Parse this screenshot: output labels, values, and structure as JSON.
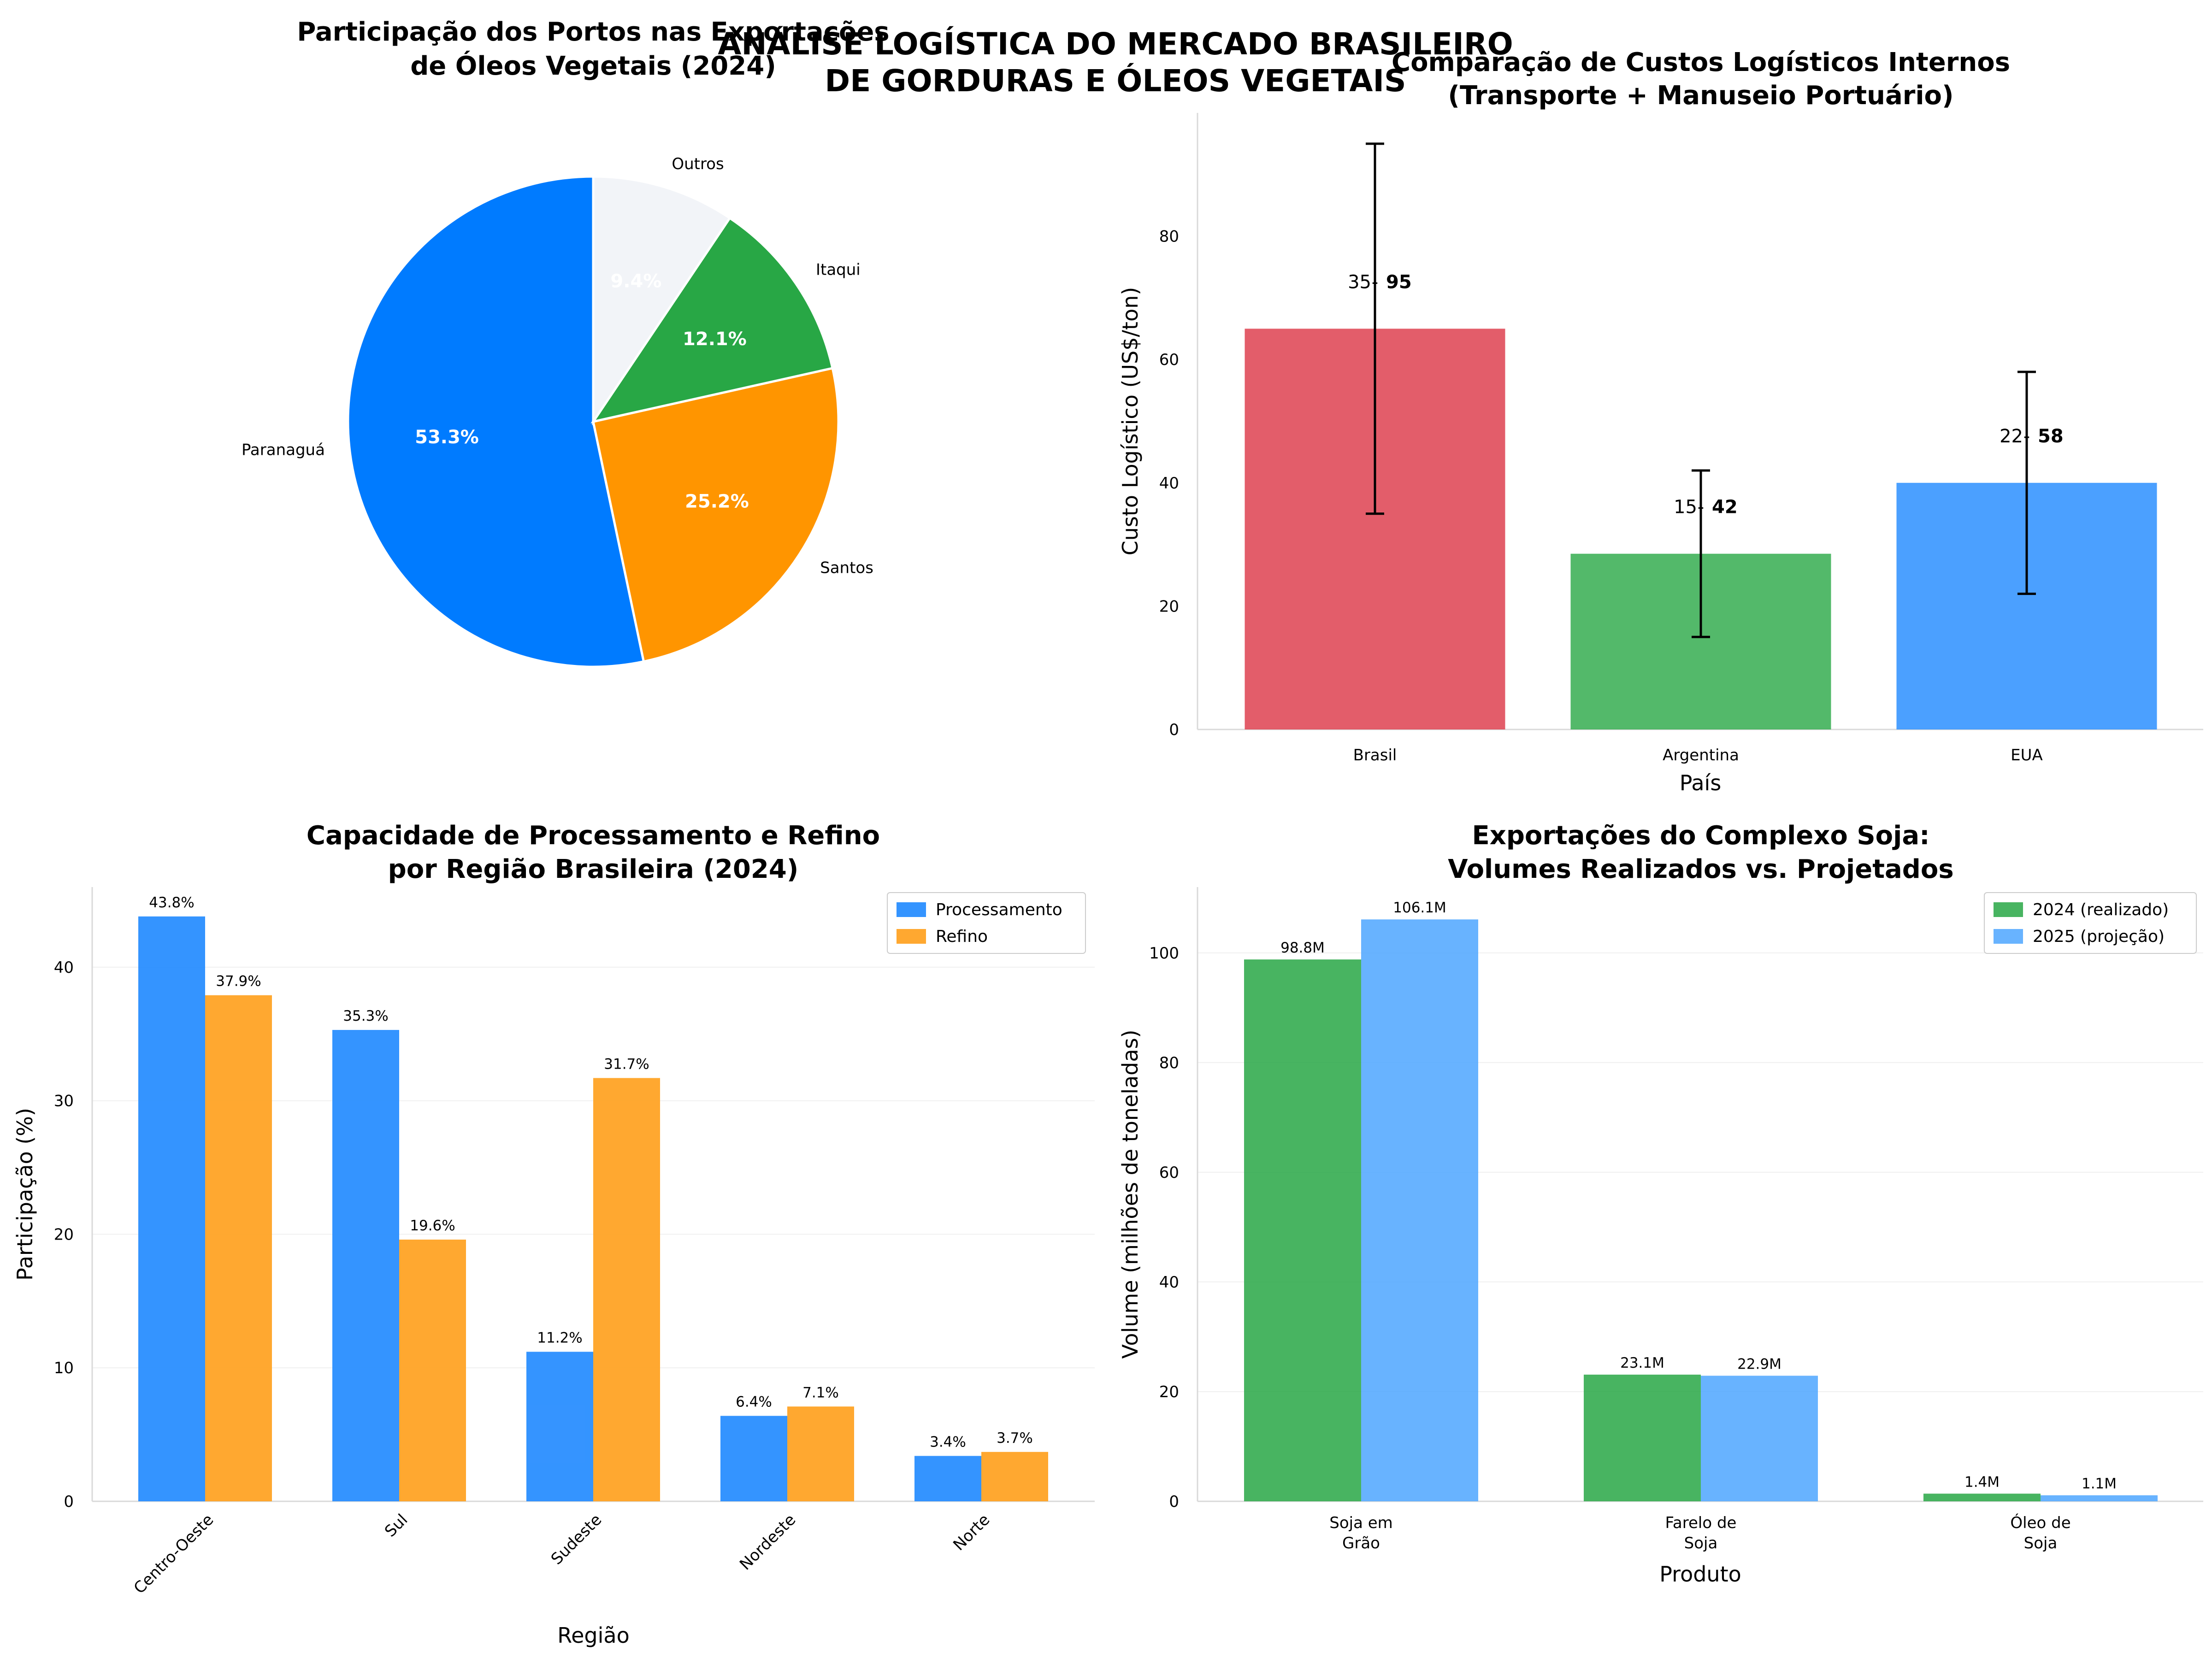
{
  "suptitle": [
    "ANÁLISE LOGÍSTICA DO MERCADO BRASILEIRO",
    "DE GORDURAS E ÓLEOS VEGETAIS"
  ],
  "colors": {
    "blue": "#007bff",
    "orange": "#ff9500",
    "green": "#28a745",
    "light": "#f2f4f8",
    "red": "#dc3545",
    "bar_green": "#28a745",
    "bar_blue": "#1e88ff",
    "proc": "#1e88ff",
    "ref": "#ff9f1a",
    "y2024": "#28a745",
    "y2025": "#4da6ff"
  },
  "chart_data": [
    {
      "type": "pie",
      "title": [
        "Participação dos Portos nas Exportações",
        "de Óleos Vegetais (2024)"
      ],
      "labels": [
        "Paranaguá",
        "Santos",
        "Itaqui",
        "Outros"
      ],
      "pct_labels": [
        "53.3%",
        "25.2%",
        "12.1%",
        "9.4%"
      ],
      "values": [
        53.3,
        25.2,
        12.1,
        9.4
      ]
    },
    {
      "type": "bar",
      "title": [
        "Comparação de Custos Logísticos Internos",
        "(Transporte + Manuseio Portuário)"
      ],
      "categories": [
        "Brasil",
        "Argentina",
        "EUA"
      ],
      "values": [
        65,
        28.5,
        40
      ],
      "err_low": [
        35,
        15,
        22
      ],
      "err_high": [
        95,
        42,
        58
      ],
      "range_labels": [
        {
          "low": "35",
          "high": "95"
        },
        {
          "low": "15",
          "high": "42"
        },
        {
          "low": "22",
          "high": "58"
        }
      ],
      "xlabel": "País",
      "ylabel": "Custo Logístico (US$/ton)",
      "ylim": [
        0,
        100
      ],
      "yticks": [
        0,
        20,
        40,
        60,
        80
      ]
    },
    {
      "type": "bar",
      "title": [
        "Capacidade de Processamento e Refino",
        "por Região Brasileira (2024)"
      ],
      "categories": [
        "Centro-Oeste",
        "Sul",
        "Sudeste",
        "Nordeste",
        "Norte"
      ],
      "series": [
        {
          "name": "Processamento",
          "values": [
            43.8,
            35.3,
            11.2,
            6.4,
            3.4
          ],
          "labels": [
            "43.8%",
            "35.3%",
            "11.2%",
            "6.4%",
            "3.4%"
          ]
        },
        {
          "name": "Refino",
          "values": [
            37.9,
            19.6,
            31.7,
            7.1,
            3.7
          ],
          "labels": [
            "37.9%",
            "19.6%",
            "31.7%",
            "7.1%",
            "3.7%"
          ]
        }
      ],
      "xlabel": "Região",
      "ylabel": "Participação (%)",
      "ylim": [
        0,
        46
      ],
      "yticks": [
        0,
        10,
        20,
        30,
        40
      ],
      "legend": "top-right"
    },
    {
      "type": "bar",
      "title": [
        "Exportações do Complexo Soja:",
        "Volumes Realizados vs. Projetados"
      ],
      "categories": [
        [
          "Soja em",
          "Grão"
        ],
        [
          "Farelo de",
          "Soja"
        ],
        [
          "Óleo de",
          "Soja"
        ]
      ],
      "series": [
        {
          "name": "2024 (realizado)",
          "values": [
            98.8,
            23.1,
            1.4
          ],
          "labels": [
            "98.8M",
            "23.1M",
            "1.4M"
          ]
        },
        {
          "name": "2025 (projeção)",
          "values": [
            106.1,
            22.9,
            1.1
          ],
          "labels": [
            "106.1M",
            "22.9M",
            "1.1M"
          ]
        }
      ],
      "xlabel": "Produto",
      "ylabel": "Volume (milhões de toneladas)",
      "ylim": [
        0,
        112
      ],
      "yticks": [
        0,
        20,
        40,
        60,
        80,
        100
      ],
      "legend": "top-right"
    }
  ]
}
